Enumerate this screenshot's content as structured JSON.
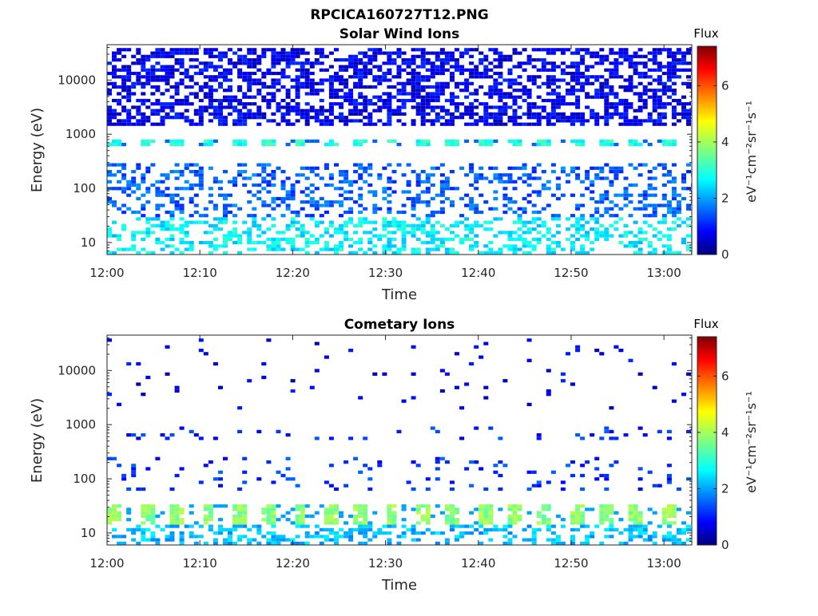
{
  "figure": {
    "title": "RPCICA160727T12.PNG"
  },
  "chart_data": [
    {
      "type": "heatmap",
      "title": "Solar Wind Ions",
      "xlabel": "Time",
      "ylabel": "Energy (eV)",
      "x_ticks": [
        "12:00",
        "12:10",
        "12:20",
        "12:30",
        "12:40",
        "12:50",
        "13:00"
      ],
      "x_range": [
        "12:00",
        "13:03"
      ],
      "y_scale": "log",
      "y_ticks": [
        "10",
        "100",
        "1000",
        "10000"
      ],
      "y_range": [
        6,
        45000
      ],
      "colorbar": {
        "title": "Flux",
        "label": "eV⁻¹cm⁻²sr⁻¹s⁻¹",
        "ticks": [
          "0",
          "2",
          "4",
          "6"
        ],
        "range": [
          0,
          7.4
        ],
        "colormap": "jet"
      },
      "description_of_values": "Sparse low flux (≈0–1.5) across 1000–40000 eV; ≈3 flux band near 700 eV every ~3 min; ≈2.5–3 flux patches below 30 eV",
      "bands": [
        {
          "energy_range_eV": [
            1500,
            40000
          ],
          "flux_typical": 0.8,
          "fill": "dense"
        },
        {
          "energy_range_eV": [
            620,
            760
          ],
          "flux_typical": 3.0,
          "period_min": 3.3
        },
        {
          "energy_range_eV": [
            30,
            300
          ],
          "flux_typical": 1.6,
          "fill": "medium"
        },
        {
          "energy_range_eV": [
            6,
            30
          ],
          "flux_typical": 2.7,
          "fill": "patchy"
        }
      ]
    },
    {
      "type": "heatmap",
      "title": "Cometary Ions",
      "xlabel": "Time",
      "ylabel": "Energy (eV)",
      "x_ticks": [
        "12:00",
        "12:10",
        "12:20",
        "12:30",
        "12:40",
        "12:50",
        "13:00"
      ],
      "x_range": [
        "12:00",
        "13:03"
      ],
      "y_scale": "log",
      "y_ticks": [
        "10",
        "100",
        "1000",
        "10000"
      ],
      "y_range": [
        6,
        45000
      ],
      "colorbar": {
        "title": "Flux",
        "label": "eV⁻¹cm⁻²sr⁻¹s⁻¹",
        "ticks": [
          "0",
          "2",
          "4",
          "6"
        ],
        "range": [
          0,
          7.4
        ],
        "colormap": "jet"
      },
      "description_of_values": "Very sparse low flux above 1000 eV; ≈1–1.5 flux near 600–800 eV; strongest flux ≈3.5–4.2 at 15–30 eV pulsing every ~3 min",
      "bands": [
        {
          "energy_range_eV": [
            2000,
            40000
          ],
          "flux_typical": 0.8,
          "fill": "very sparse"
        },
        {
          "energy_range_eV": [
            500,
            900
          ],
          "flux_typical": 1.2,
          "fill": "sparse"
        },
        {
          "energy_range_eV": [
            60,
            250
          ],
          "flux_typical": 1.3,
          "fill": "sparse"
        },
        {
          "energy_range_eV": [
            15,
            32
          ],
          "flux_typical": 3.8,
          "period_min": 3.3
        },
        {
          "energy_range_eV": [
            6,
            15
          ],
          "flux_typical": 2.3,
          "fill": "patchy"
        }
      ]
    }
  ]
}
